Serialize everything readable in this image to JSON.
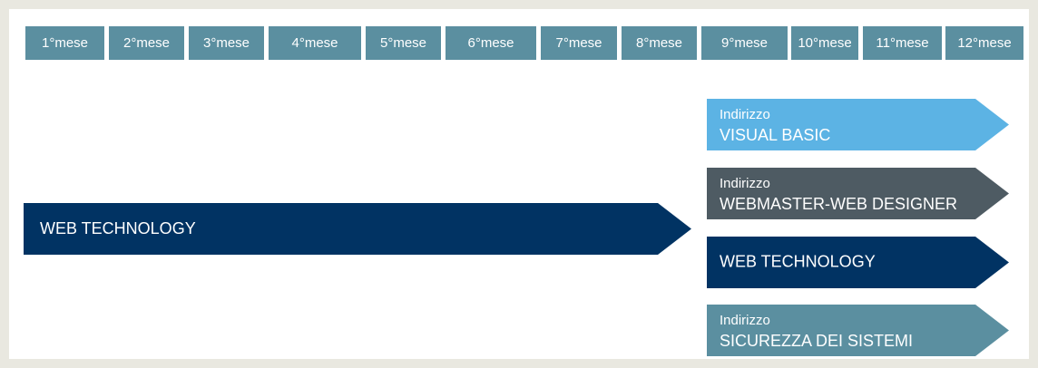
{
  "months": [
    "1°mese",
    "2°mese",
    "3°mese",
    "4°mese",
    "5°mese",
    "6°mese",
    "7°mese",
    "8°mese",
    "9°mese",
    "10°mese",
    "11°mese",
    "12°mese"
  ],
  "main_track": {
    "label": "WEB TECHNOLOGY"
  },
  "tracks": [
    {
      "prefix": "Indirizzo",
      "label": "VISUAL BASIC"
    },
    {
      "prefix": "Indirizzo",
      "label": "WEBMASTER-WEB DESIGNER"
    },
    {
      "label": "WEB TECHNOLOGY"
    },
    {
      "prefix": "Indirizzo",
      "label": "SICUREZZA DEI SISTEMI"
    }
  ]
}
